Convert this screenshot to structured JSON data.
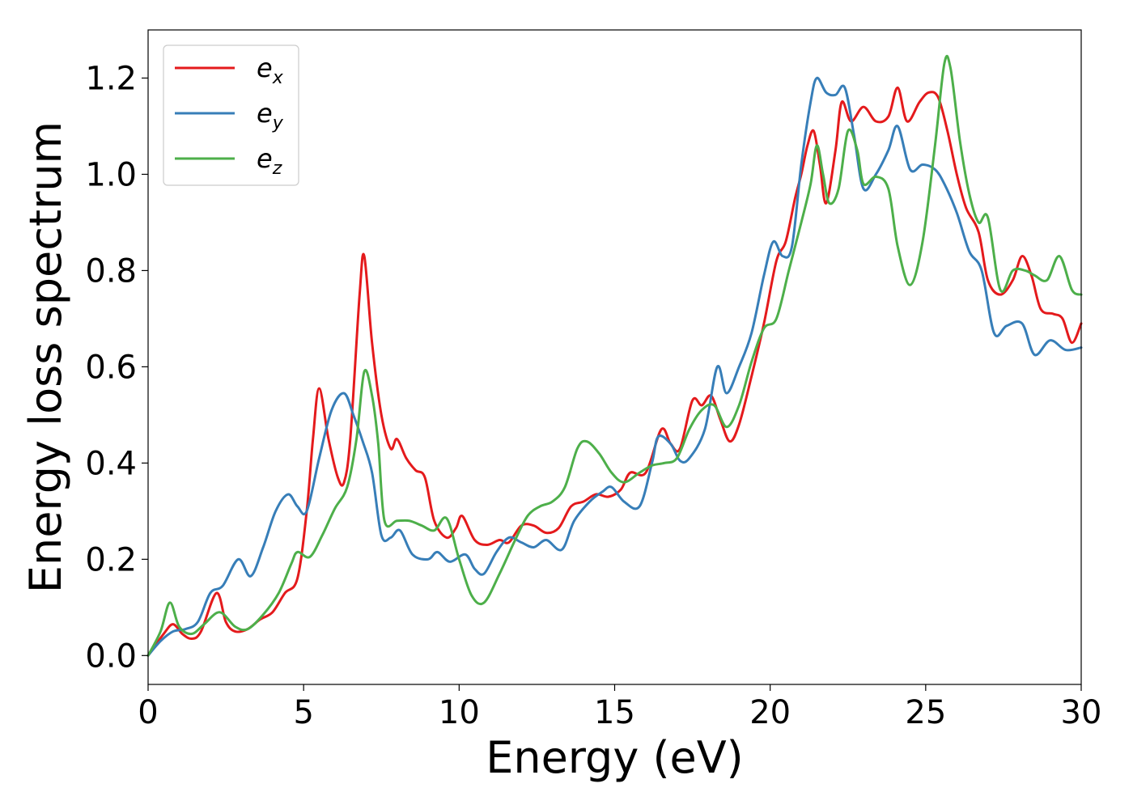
{
  "chart_data": {
    "type": "line",
    "xlabel": "Energy (eV)",
    "ylabel": "Energy loss spectrum",
    "xlim": [
      0,
      30
    ],
    "ylim": [
      -0.06,
      1.3
    ],
    "xticks": [
      0,
      5,
      10,
      15,
      20,
      25,
      30
    ],
    "xtick_labels": [
      "0",
      "5",
      "10",
      "15",
      "20",
      "25",
      "30"
    ],
    "yticks": [
      0.0,
      0.2,
      0.4,
      0.6,
      0.8,
      1.0,
      1.2
    ],
    "ytick_labels": [
      "0.0",
      "0.2",
      "0.4",
      "0.6",
      "0.8",
      "1.0",
      "1.2"
    ],
    "grid": false,
    "legend_position": "top-left",
    "series": [
      {
        "name": "e_x",
        "label_base": "e",
        "label_sub": "x",
        "color": "#e41a1c",
        "points": [
          [
            0,
            0
          ],
          [
            0.5,
            0.045
          ],
          [
            0.8,
            0.065
          ],
          [
            1.1,
            0.045
          ],
          [
            1.4,
            0.035
          ],
          [
            1.7,
            0.05
          ],
          [
            2.2,
            0.13
          ],
          [
            2.5,
            0.07
          ],
          [
            2.8,
            0.05
          ],
          [
            3.2,
            0.055
          ],
          [
            3.6,
            0.075
          ],
          [
            4.0,
            0.09
          ],
          [
            4.4,
            0.13
          ],
          [
            4.8,
            0.16
          ],
          [
            5.1,
            0.3
          ],
          [
            5.3,
            0.45
          ],
          [
            5.5,
            0.555
          ],
          [
            5.8,
            0.45
          ],
          [
            6.1,
            0.37
          ],
          [
            6.3,
            0.36
          ],
          [
            6.5,
            0.45
          ],
          [
            6.8,
            0.75
          ],
          [
            6.95,
            0.83
          ],
          [
            7.2,
            0.65
          ],
          [
            7.5,
            0.5
          ],
          [
            7.8,
            0.43
          ],
          [
            8.0,
            0.45
          ],
          [
            8.3,
            0.41
          ],
          [
            8.6,
            0.385
          ],
          [
            8.9,
            0.37
          ],
          [
            9.2,
            0.28
          ],
          [
            9.6,
            0.245
          ],
          [
            9.9,
            0.265
          ],
          [
            10.1,
            0.29
          ],
          [
            10.5,
            0.24
          ],
          [
            10.9,
            0.23
          ],
          [
            11.3,
            0.24
          ],
          [
            11.6,
            0.235
          ],
          [
            12.0,
            0.27
          ],
          [
            12.4,
            0.27
          ],
          [
            12.8,
            0.255
          ],
          [
            13.2,
            0.265
          ],
          [
            13.6,
            0.31
          ],
          [
            14.0,
            0.32
          ],
          [
            14.4,
            0.335
          ],
          [
            14.8,
            0.33
          ],
          [
            15.2,
            0.345
          ],
          [
            15.5,
            0.38
          ],
          [
            16.0,
            0.38
          ],
          [
            16.5,
            0.47
          ],
          [
            16.8,
            0.44
          ],
          [
            17.1,
            0.43
          ],
          [
            17.5,
            0.53
          ],
          [
            17.8,
            0.52
          ],
          [
            18.1,
            0.54
          ],
          [
            18.4,
            0.49
          ],
          [
            18.7,
            0.445
          ],
          [
            19.0,
            0.48
          ],
          [
            19.4,
            0.58
          ],
          [
            19.8,
            0.69
          ],
          [
            20.2,
            0.82
          ],
          [
            20.5,
            0.86
          ],
          [
            20.8,
            0.95
          ],
          [
            21.0,
            1.0
          ],
          [
            21.2,
            1.06
          ],
          [
            21.4,
            1.09
          ],
          [
            21.6,
            1.02
          ],
          [
            21.8,
            0.94
          ],
          [
            22.1,
            1.05
          ],
          [
            22.3,
            1.15
          ],
          [
            22.6,
            1.11
          ],
          [
            23.0,
            1.14
          ],
          [
            23.4,
            1.11
          ],
          [
            23.8,
            1.12
          ],
          [
            24.1,
            1.18
          ],
          [
            24.4,
            1.11
          ],
          [
            24.8,
            1.15
          ],
          [
            25.1,
            1.17
          ],
          [
            25.4,
            1.16
          ],
          [
            25.7,
            1.09
          ],
          [
            26.0,
            1.0
          ],
          [
            26.3,
            0.93
          ],
          [
            26.7,
            0.88
          ],
          [
            27.0,
            0.78
          ],
          [
            27.4,
            0.75
          ],
          [
            27.8,
            0.78
          ],
          [
            28.1,
            0.83
          ],
          [
            28.4,
            0.79
          ],
          [
            28.7,
            0.72
          ],
          [
            29.1,
            0.71
          ],
          [
            29.4,
            0.7
          ],
          [
            29.7,
            0.65
          ],
          [
            30.0,
            0.69
          ]
        ]
      },
      {
        "name": "e_y",
        "label_base": "e",
        "label_sub": "y",
        "color": "#377eb8",
        "points": [
          [
            0,
            0
          ],
          [
            0.4,
            0.03
          ],
          [
            0.8,
            0.05
          ],
          [
            1.2,
            0.055
          ],
          [
            1.6,
            0.07
          ],
          [
            2.0,
            0.13
          ],
          [
            2.4,
            0.145
          ],
          [
            2.9,
            0.2
          ],
          [
            3.3,
            0.165
          ],
          [
            3.7,
            0.225
          ],
          [
            4.1,
            0.3
          ],
          [
            4.5,
            0.335
          ],
          [
            4.8,
            0.31
          ],
          [
            5.1,
            0.3
          ],
          [
            5.5,
            0.41
          ],
          [
            5.9,
            0.51
          ],
          [
            6.3,
            0.545
          ],
          [
            6.6,
            0.5
          ],
          [
            6.9,
            0.445
          ],
          [
            7.2,
            0.38
          ],
          [
            7.5,
            0.25
          ],
          [
            7.8,
            0.245
          ],
          [
            8.1,
            0.26
          ],
          [
            8.5,
            0.21
          ],
          [
            9.0,
            0.2
          ],
          [
            9.3,
            0.215
          ],
          [
            9.7,
            0.195
          ],
          [
            10.2,
            0.21
          ],
          [
            10.5,
            0.18
          ],
          [
            10.8,
            0.17
          ],
          [
            11.2,
            0.215
          ],
          [
            11.6,
            0.245
          ],
          [
            12.0,
            0.235
          ],
          [
            12.4,
            0.225
          ],
          [
            12.8,
            0.24
          ],
          [
            13.3,
            0.22
          ],
          [
            13.7,
            0.28
          ],
          [
            14.2,
            0.32
          ],
          [
            14.6,
            0.34
          ],
          [
            14.9,
            0.35
          ],
          [
            15.3,
            0.32
          ],
          [
            15.8,
            0.31
          ],
          [
            16.2,
            0.4
          ],
          [
            16.4,
            0.455
          ],
          [
            16.8,
            0.44
          ],
          [
            17.1,
            0.405
          ],
          [
            17.4,
            0.41
          ],
          [
            17.9,
            0.47
          ],
          [
            18.3,
            0.6
          ],
          [
            18.6,
            0.545
          ],
          [
            19.0,
            0.6
          ],
          [
            19.4,
            0.67
          ],
          [
            19.8,
            0.79
          ],
          [
            20.1,
            0.86
          ],
          [
            20.4,
            0.83
          ],
          [
            20.7,
            0.85
          ],
          [
            21.0,
            1.02
          ],
          [
            21.3,
            1.15
          ],
          [
            21.5,
            1.2
          ],
          [
            21.8,
            1.17
          ],
          [
            22.1,
            1.165
          ],
          [
            22.4,
            1.18
          ],
          [
            22.7,
            1.08
          ],
          [
            23.0,
            0.97
          ],
          [
            23.4,
            1.0
          ],
          [
            23.8,
            1.05
          ],
          [
            24.1,
            1.1
          ],
          [
            24.5,
            1.01
          ],
          [
            24.9,
            1.02
          ],
          [
            25.3,
            1.01
          ],
          [
            25.6,
            0.98
          ],
          [
            26.0,
            0.92
          ],
          [
            26.4,
            0.84
          ],
          [
            26.8,
            0.8
          ],
          [
            27.2,
            0.67
          ],
          [
            27.6,
            0.685
          ],
          [
            28.1,
            0.69
          ],
          [
            28.5,
            0.625
          ],
          [
            29.0,
            0.655
          ],
          [
            29.5,
            0.635
          ],
          [
            30.0,
            0.64
          ]
        ]
      },
      {
        "name": "e_z",
        "label_base": "e",
        "label_sub": "z",
        "color": "#4daf4a",
        "points": [
          [
            0,
            0
          ],
          [
            0.4,
            0.05
          ],
          [
            0.7,
            0.11
          ],
          [
            1.0,
            0.06
          ],
          [
            1.4,
            0.045
          ],
          [
            1.8,
            0.065
          ],
          [
            2.3,
            0.09
          ],
          [
            2.8,
            0.06
          ],
          [
            3.2,
            0.055
          ],
          [
            3.7,
            0.085
          ],
          [
            4.2,
            0.13
          ],
          [
            4.6,
            0.19
          ],
          [
            4.8,
            0.215
          ],
          [
            5.2,
            0.205
          ],
          [
            5.6,
            0.25
          ],
          [
            6.0,
            0.305
          ],
          [
            6.4,
            0.35
          ],
          [
            6.7,
            0.45
          ],
          [
            6.95,
            0.59
          ],
          [
            7.2,
            0.54
          ],
          [
            7.4,
            0.44
          ],
          [
            7.6,
            0.28
          ],
          [
            8.0,
            0.28
          ],
          [
            8.4,
            0.28
          ],
          [
            8.8,
            0.27
          ],
          [
            9.2,
            0.26
          ],
          [
            9.6,
            0.285
          ],
          [
            10.0,
            0.2
          ],
          [
            10.4,
            0.125
          ],
          [
            10.8,
            0.11
          ],
          [
            11.3,
            0.17
          ],
          [
            11.8,
            0.24
          ],
          [
            12.2,
            0.29
          ],
          [
            12.6,
            0.31
          ],
          [
            13.0,
            0.32
          ],
          [
            13.4,
            0.35
          ],
          [
            13.8,
            0.43
          ],
          [
            14.1,
            0.445
          ],
          [
            14.5,
            0.42
          ],
          [
            14.9,
            0.38
          ],
          [
            15.3,
            0.36
          ],
          [
            15.8,
            0.38
          ],
          [
            16.2,
            0.395
          ],
          [
            16.6,
            0.4
          ],
          [
            17.0,
            0.41
          ],
          [
            17.4,
            0.47
          ],
          [
            17.8,
            0.51
          ],
          [
            18.2,
            0.52
          ],
          [
            18.6,
            0.475
          ],
          [
            19.0,
            0.52
          ],
          [
            19.4,
            0.61
          ],
          [
            19.8,
            0.68
          ],
          [
            20.2,
            0.7
          ],
          [
            20.6,
            0.8
          ],
          [
            21.0,
            0.9
          ],
          [
            21.3,
            0.98
          ],
          [
            21.5,
            1.06
          ],
          [
            21.7,
            1.0
          ],
          [
            21.9,
            0.94
          ],
          [
            22.2,
            0.97
          ],
          [
            22.5,
            1.09
          ],
          [
            22.8,
            1.05
          ],
          [
            23.0,
            0.98
          ],
          [
            23.4,
            0.995
          ],
          [
            23.8,
            0.97
          ],
          [
            24.1,
            0.85
          ],
          [
            24.5,
            0.77
          ],
          [
            24.9,
            0.86
          ],
          [
            25.3,
            1.06
          ],
          [
            25.6,
            1.23
          ],
          [
            25.8,
            1.22
          ],
          [
            26.1,
            1.07
          ],
          [
            26.4,
            0.96
          ],
          [
            26.7,
            0.9
          ],
          [
            27.0,
            0.91
          ],
          [
            27.4,
            0.76
          ],
          [
            27.8,
            0.8
          ],
          [
            28.2,
            0.8
          ],
          [
            28.5,
            0.79
          ],
          [
            28.9,
            0.78
          ],
          [
            29.3,
            0.83
          ],
          [
            29.7,
            0.76
          ],
          [
            30.0,
            0.75
          ]
        ]
      }
    ]
  }
}
